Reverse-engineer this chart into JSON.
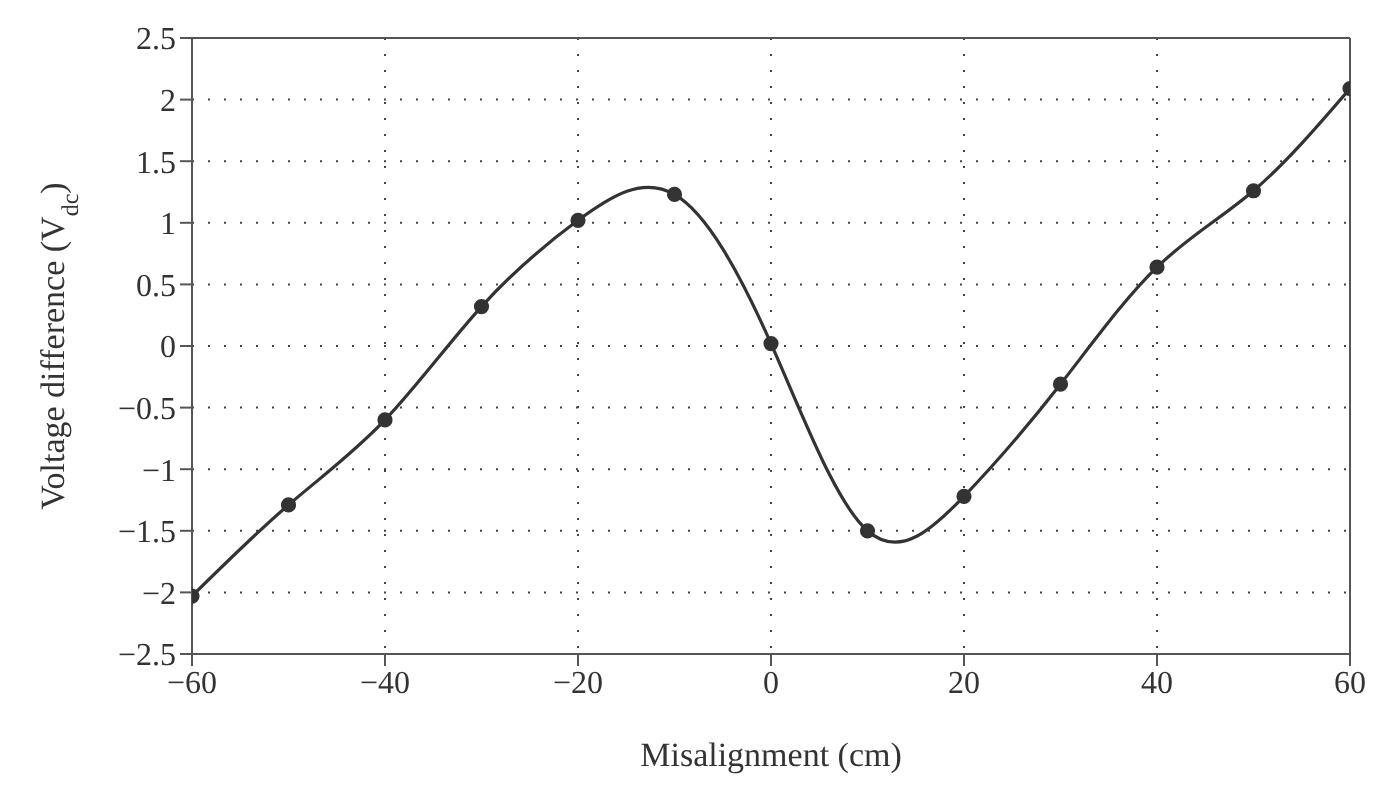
{
  "chart_data": {
    "type": "line",
    "xlabel": "Misalignment (cm)",
    "ylabel": "Voltage difference (V$_{dc}$)",
    "x": [
      -60,
      -50,
      -40,
      -30,
      -20,
      -10,
      0,
      10,
      20,
      30,
      40,
      50,
      60
    ],
    "series": [
      {
        "color": "#333333",
        "values": [
          -2.03,
          -1.29,
          -0.6,
          0.32,
          1.02,
          1.23,
          0.02,
          -1.5,
          -1.22,
          -0.31,
          0.64,
          1.26,
          2.09
        ]
      }
    ],
    "xlim": [
      -60,
      60
    ],
    "xticks": [
      -60,
      -40,
      -20,
      0,
      20,
      40,
      60
    ],
    "ylim": [
      -2.5,
      2.5
    ],
    "yticks": [
      -2.5,
      -2,
      -1.5,
      -1,
      -0.5,
      0,
      0.5,
      1,
      1.5,
      2,
      2.5
    ],
    "grid": true,
    "marker": "circle",
    "line_style": "solid",
    "legend": false
  }
}
